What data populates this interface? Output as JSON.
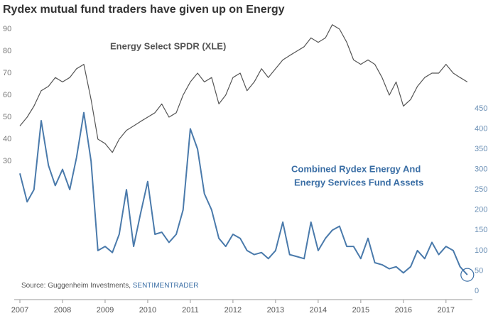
{
  "chart_data": {
    "type": "line",
    "title": "Rydex mutual fund traders have given up on Energy",
    "annotations": [
      "Energy Select SPDR (XLE)",
      "Combined Rydex Energy And",
      "Energy Services Fund Assets"
    ],
    "source": "Source: Guggenheim Investments, ",
    "source_brand": "SENTIMENTRADER",
    "x": [
      2007.0,
      2007.17,
      2007.33,
      2007.5,
      2007.67,
      2007.83,
      2008.0,
      2008.17,
      2008.33,
      2008.5,
      2008.67,
      2008.83,
      2009.0,
      2009.17,
      2009.33,
      2009.5,
      2009.67,
      2009.83,
      2010.0,
      2010.17,
      2010.33,
      2010.5,
      2010.67,
      2010.83,
      2011.0,
      2011.17,
      2011.33,
      2011.5,
      2011.67,
      2011.83,
      2012.0,
      2012.17,
      2012.33,
      2012.5,
      2012.67,
      2012.83,
      2013.0,
      2013.17,
      2013.33,
      2013.5,
      2013.67,
      2013.83,
      2014.0,
      2014.17,
      2014.33,
      2014.5,
      2014.67,
      2014.83,
      2015.0,
      2015.17,
      2015.33,
      2015.5,
      2015.67,
      2015.83,
      2016.0,
      2016.17,
      2016.33,
      2016.5,
      2016.67,
      2016.83,
      2017.0,
      2017.17,
      2017.33,
      2017.5
    ],
    "series": [
      {
        "name": "Energy Select SPDR (XLE)",
        "color": "#555555",
        "axis": "y",
        "values": [
          46,
          50,
          55,
          62,
          64,
          68,
          66,
          68,
          72,
          74,
          58,
          40,
          38,
          34,
          40,
          44,
          46,
          48,
          50,
          52,
          56,
          50,
          52,
          60,
          66,
          70,
          66,
          68,
          56,
          60,
          68,
          70,
          62,
          66,
          72,
          68,
          72,
          76,
          78,
          80,
          82,
          86,
          84,
          86,
          92,
          90,
          84,
          76,
          74,
          76,
          74,
          68,
          60,
          66,
          55,
          58,
          64,
          68,
          70,
          70,
          74,
          70,
          68,
          66
        ]
      },
      {
        "name": "Combined Rydex Energy And Energy Services Fund Assets",
        "color": "#4a7aab",
        "axis": "y2",
        "values": [
          290,
          220,
          250,
          420,
          310,
          260,
          300,
          250,
          330,
          440,
          320,
          100,
          110,
          95,
          140,
          250,
          110,
          190,
          270,
          140,
          145,
          120,
          140,
          200,
          400,
          350,
          240,
          200,
          130,
          110,
          140,
          130,
          100,
          90,
          95,
          80,
          100,
          170,
          90,
          85,
          80,
          170,
          100,
          130,
          150,
          160,
          110,
          110,
          80,
          130,
          70,
          65,
          55,
          60,
          45,
          60,
          100,
          80,
          120,
          90,
          110,
          100,
          60,
          40
        ]
      }
    ],
    "xlim": [
      2007,
      2017.62
    ],
    "xticks": [
      2007,
      2008,
      2009,
      2010,
      2011,
      2012,
      2013,
      2014,
      2015,
      2016,
      2017
    ],
    "ylim": [
      -29,
      100
    ],
    "yticks": [
      30,
      40,
      50,
      60,
      70,
      80,
      90
    ],
    "y2lim": [
      0,
      700
    ],
    "y2ticks": [
      0,
      50,
      100,
      150,
      200,
      250,
      300,
      350,
      400,
      450
    ]
  }
}
